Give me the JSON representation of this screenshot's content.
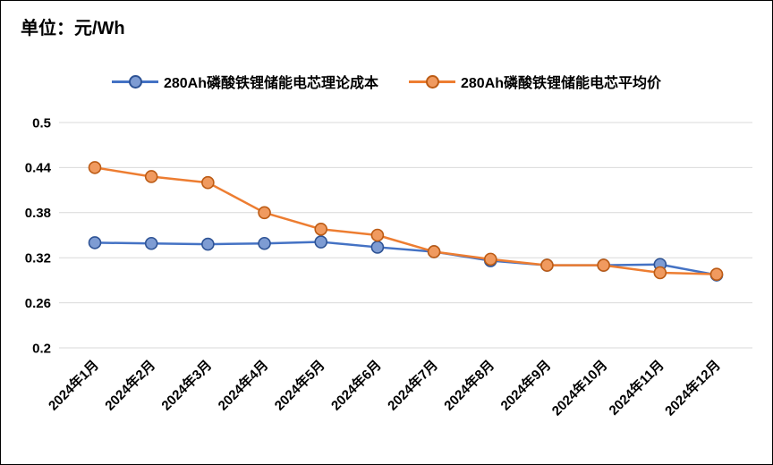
{
  "title": "单位：元/Wh",
  "chart_data": {
    "type": "line",
    "title": "",
    "xlabel": "",
    "ylabel": "元/Wh",
    "x": [
      "2024年1月",
      "2024年2月",
      "2024年3月",
      "2024年4月",
      "2024年5月",
      "2024年6月",
      "2024年7月",
      "2024年8月",
      "2024年9月",
      "2024年10月",
      "2024年11月",
      "2024年12月"
    ],
    "series": [
      {
        "name": "280Ah磷酸铁锂储能电芯理论成本",
        "color": "#4472C4",
        "marker_fill": "#7E9CD3",
        "marker_stroke": "#2E5395",
        "values": [
          0.34,
          0.339,
          0.338,
          0.339,
          0.341,
          0.334,
          0.328,
          0.316,
          0.31,
          0.31,
          0.311,
          0.297
        ]
      },
      {
        "name": "280Ah磷酸铁锂储能电芯平均价",
        "color": "#ED7D31",
        "marker_fill": "#F09A5F",
        "marker_stroke": "#BC5B14",
        "values": [
          0.44,
          0.428,
          0.42,
          0.38,
          0.358,
          0.35,
          0.328,
          0.318,
          0.31,
          0.31,
          0.3,
          0.298
        ]
      }
    ],
    "ylim": [
      0.2,
      0.5
    ],
    "yticks": [
      0.2,
      0.26,
      0.32,
      0.38,
      0.44,
      0.5
    ],
    "grid": true,
    "gridline_color": "#d9d9d9",
    "legend_position": "top"
  }
}
